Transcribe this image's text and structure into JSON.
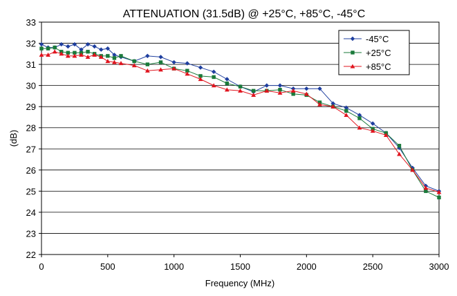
{
  "chart_data": {
    "type": "line",
    "title": "ATTENUATION (31.5dB) @ +25°C, +85°C, -45°C",
    "xlabel": "Frequency (MHz)",
    "ylabel": "(dB)",
    "xlim": [
      0,
      3000
    ],
    "ylim": [
      22,
      33
    ],
    "xticks": [
      0,
      500,
      1000,
      1500,
      2000,
      2500,
      3000
    ],
    "yticks": [
      22,
      23,
      24,
      25,
      26,
      27,
      28,
      29,
      30,
      31,
      32,
      33
    ],
    "grid": "horizontal",
    "legend_position": "top-right",
    "series": [
      {
        "name": "-45°C",
        "color": "#1f3f9f",
        "marker": "diamond",
        "x": [
          0,
          50,
          100,
          150,
          200,
          250,
          300,
          350,
          400,
          450,
          500,
          550,
          600,
          700,
          800,
          900,
          1000,
          1100,
          1200,
          1300,
          1400,
          1500,
          1600,
          1700,
          1800,
          1900,
          2000,
          2100,
          2200,
          2300,
          2400,
          2500,
          2600,
          2700,
          2800,
          2900,
          3000
        ],
        "y": [
          31.95,
          31.8,
          31.8,
          31.95,
          31.85,
          31.95,
          31.7,
          31.95,
          31.85,
          31.7,
          31.75,
          31.45,
          31.35,
          31.15,
          31.4,
          31.35,
          31.1,
          31.05,
          30.85,
          30.65,
          30.3,
          29.95,
          29.7,
          30.0,
          30.0,
          29.85,
          29.85,
          29.85,
          29.15,
          28.95,
          28.6,
          28.2,
          27.75,
          27.05,
          26.1,
          25.25,
          25.0
        ]
      },
      {
        "name": "+25°C",
        "color": "#1a7a3a",
        "marker": "square",
        "x": [
          0,
          50,
          100,
          150,
          200,
          250,
          300,
          350,
          400,
          450,
          500,
          550,
          600,
          700,
          800,
          900,
          1000,
          1100,
          1200,
          1300,
          1400,
          1500,
          1600,
          1700,
          1800,
          1900,
          2000,
          2100,
          2200,
          2300,
          2400,
          2500,
          2600,
          2700,
          2800,
          2900,
          3000
        ],
        "y": [
          31.75,
          31.75,
          31.8,
          31.6,
          31.55,
          31.55,
          31.55,
          31.6,
          31.5,
          31.4,
          31.4,
          31.3,
          31.4,
          31.15,
          31.0,
          31.1,
          30.8,
          30.7,
          30.45,
          30.4,
          30.1,
          29.95,
          29.75,
          29.75,
          29.8,
          29.6,
          29.55,
          29.2,
          29.0,
          28.8,
          28.45,
          27.95,
          27.75,
          27.15,
          26.0,
          25.0,
          24.7
        ]
      },
      {
        "name": "+85°C",
        "color": "#e0141e",
        "marker": "triangle",
        "x": [
          0,
          50,
          100,
          150,
          200,
          250,
          300,
          350,
          400,
          450,
          500,
          550,
          600,
          700,
          800,
          900,
          1000,
          1100,
          1200,
          1300,
          1400,
          1500,
          1600,
          1700,
          1800,
          1900,
          2000,
          2100,
          2200,
          2300,
          2400,
          2500,
          2600,
          2700,
          2800,
          2900,
          3000
        ],
        "y": [
          31.45,
          31.45,
          31.6,
          31.5,
          31.4,
          31.4,
          31.45,
          31.35,
          31.45,
          31.35,
          31.15,
          31.1,
          31.05,
          30.95,
          30.7,
          30.75,
          30.8,
          30.55,
          30.3,
          30.0,
          29.8,
          29.75,
          29.55,
          29.75,
          29.65,
          29.75,
          29.6,
          29.1,
          29.0,
          28.6,
          28.0,
          27.85,
          27.65,
          26.75,
          26.0,
          25.15,
          24.95
        ]
      }
    ]
  }
}
